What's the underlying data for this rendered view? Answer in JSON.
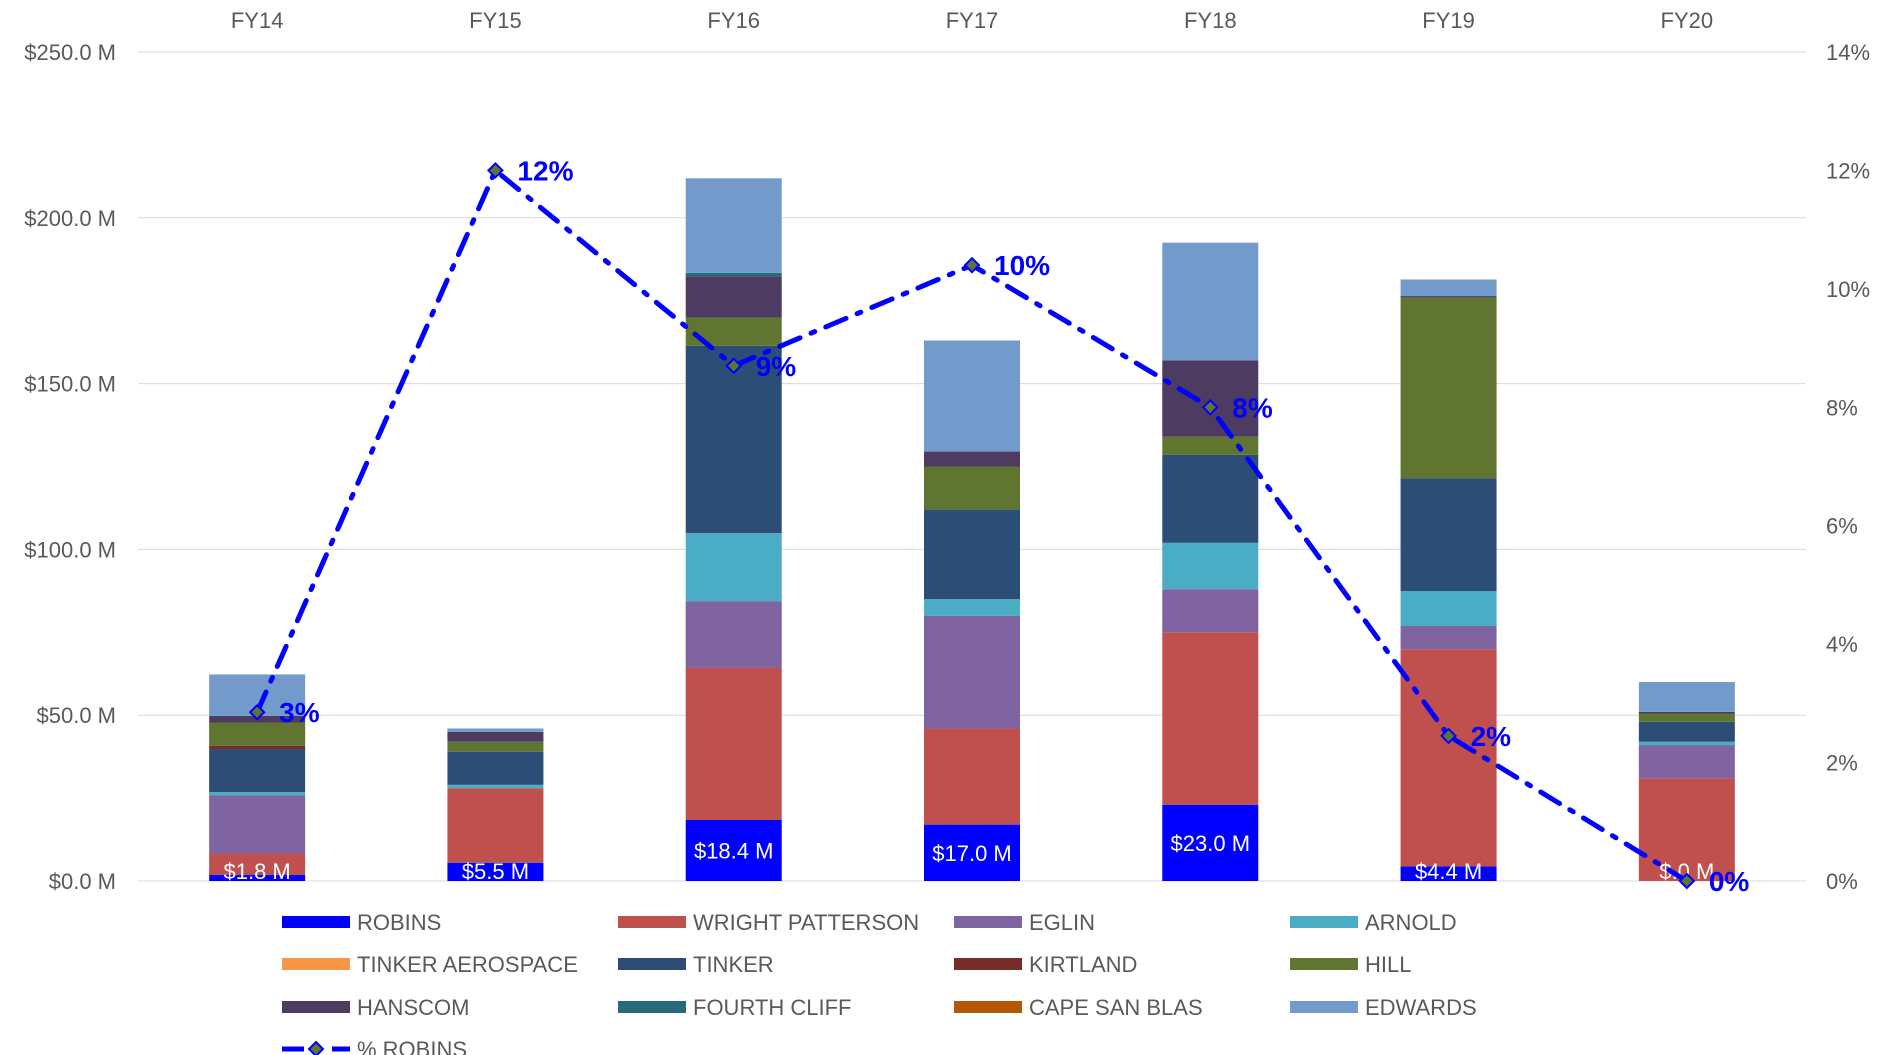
{
  "chart_data": {
    "type": "bar",
    "stacked": true,
    "categories": [
      "FY14",
      "FY15",
      "FY16",
      "FY17",
      "FY18",
      "FY19",
      "FY20"
    ],
    "x_tick_position": "top",
    "y_left": {
      "min": 0,
      "max": 250,
      "unit": "M",
      "ticks": [
        0,
        50,
        100,
        150,
        200,
        250
      ],
      "tick_labels": [
        "$0.0 M",
        "$50.0 M",
        "$100.0 M",
        "$150.0 M",
        "$200.0 M",
        "$250.0 M"
      ]
    },
    "y_right": {
      "min": 0,
      "max": 14,
      "ticks": [
        0,
        2,
        4,
        6,
        8,
        10,
        12,
        14
      ],
      "tick_labels": [
        "0%",
        "2%",
        "4%",
        "6%",
        "8%",
        "10%",
        "12%",
        "14%"
      ]
    },
    "grid": true,
    "legend_position": "bottom",
    "series": [
      {
        "name": "ROBINS",
        "color": "#0000FF",
        "values": [
          1.8,
          5.5,
          18.4,
          17.0,
          23.0,
          4.4,
          0.0
        ],
        "data_labels": [
          "$1.8 M",
          "$5.5 M",
          "$18.4 M",
          "$17.0 M",
          "$23.0 M",
          "$4.4 M",
          "$.0 M"
        ]
      },
      {
        "name": "WRIGHT PATTERSON",
        "color": "#C0504D",
        "values": [
          6.5,
          22.5,
          46,
          29,
          52,
          65.5,
          31
        ]
      },
      {
        "name": "EGLIN",
        "color": "#8064A2",
        "values": [
          17.5,
          0,
          20,
          34,
          13,
          7,
          10
        ]
      },
      {
        "name": "ARNOLD",
        "color": "#4BACC6",
        "values": [
          1,
          1,
          20.5,
          5,
          14,
          10.5,
          1
        ]
      },
      {
        "name": "TINKER AEROSPACE",
        "color": "#F79646",
        "values": [
          0,
          0,
          0,
          0,
          0,
          0,
          0
        ]
      },
      {
        "name": "TINKER",
        "color": "#2C4D75",
        "values": [
          13,
          10,
          56.5,
          27,
          26.5,
          34,
          6
        ]
      },
      {
        "name": "KIRTLAND",
        "color": "#772C2A",
        "values": [
          1,
          0,
          0,
          0,
          0,
          0,
          0
        ]
      },
      {
        "name": "HILL",
        "color": "#5F7530",
        "values": [
          7,
          3,
          8.5,
          13,
          5.5,
          54.5,
          2.5
        ]
      },
      {
        "name": "HANSCOM",
        "color": "#4D3B62",
        "values": [
          2,
          3,
          12.5,
          4.5,
          23,
          0.5,
          0.5
        ]
      },
      {
        "name": "FOURTH CLIFF",
        "color": "#276A7C",
        "values": [
          0,
          0,
          1,
          0,
          0,
          0,
          0
        ]
      },
      {
        "name": "CAPE SAN BLAS",
        "color": "#B65708",
        "values": [
          0,
          0,
          0,
          0,
          0,
          0,
          0
        ]
      },
      {
        "name": "EDWARDS",
        "color": "#729ACA",
        "values": [
          12.5,
          1,
          28.5,
          33.5,
          35.5,
          5,
          9
        ]
      }
    ],
    "line_series": {
      "name": "% ROBINS",
      "color": "#0000FF",
      "marker_color": "#5F7530",
      "axis": "right",
      "style": "dash-dot",
      "values": [
        2.85,
        12,
        8.7,
        10.4,
        8,
        2.45,
        0
      ],
      "data_labels": [
        "3%",
        "12%",
        "9%",
        "10%",
        "8%",
        "2%",
        "0%"
      ]
    }
  }
}
